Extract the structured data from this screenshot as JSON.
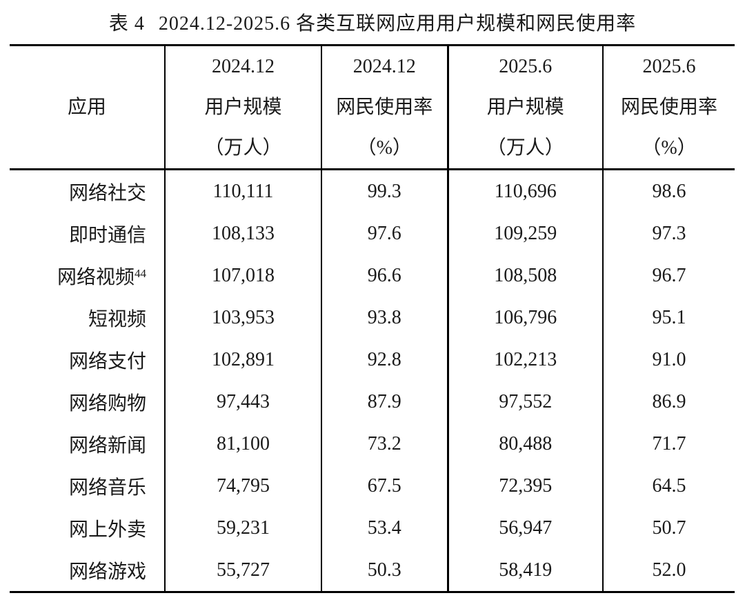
{
  "page": {
    "background": "#ffffff",
    "text_color": "#1a1a1a",
    "rule_color": "#000000"
  },
  "table": {
    "title": {
      "label": "表 4",
      "text": "2024.12-2025.6 各类互联网应用用户规模和网民使用率"
    },
    "header": {
      "app": "应用",
      "columns": [
        {
          "period": "2024.12",
          "metric": "用户规模",
          "unit": "（万人）"
        },
        {
          "period": "2024.12",
          "metric": "网民使用率",
          "unit": "（%）"
        },
        {
          "period": "2025.6",
          "metric": "用户规模",
          "unit": "（万人）"
        },
        {
          "period": "2025.6",
          "metric": "网民使用率",
          "unit": "（%）"
        }
      ]
    },
    "rows": [
      {
        "app": "网络社交",
        "note": "",
        "values": [
          "110,111",
          "99.3",
          "110,696",
          "98.6"
        ]
      },
      {
        "app": "即时通信",
        "note": "",
        "values": [
          "108,133",
          "97.6",
          "109,259",
          "97.3"
        ]
      },
      {
        "app": "网络视频",
        "note": "44",
        "values": [
          "107,018",
          "96.6",
          "108,508",
          "96.7"
        ]
      },
      {
        "app": "短视频",
        "note": "",
        "values": [
          "103,953",
          "93.8",
          "106,796",
          "95.1"
        ]
      },
      {
        "app": "网络支付",
        "note": "",
        "values": [
          "102,891",
          "92.8",
          "102,213",
          "91.0"
        ]
      },
      {
        "app": "网络购物",
        "note": "",
        "values": [
          "97,443",
          "87.9",
          "97,552",
          "86.9"
        ]
      },
      {
        "app": "网络新闻",
        "note": "",
        "values": [
          "81,100",
          "73.2",
          "80,488",
          "71.7"
        ]
      },
      {
        "app": "网络音乐",
        "note": "",
        "values": [
          "74,795",
          "67.5",
          "72,395",
          "64.5"
        ]
      },
      {
        "app": "网上外卖",
        "note": "",
        "values": [
          "59,231",
          "53.4",
          "56,947",
          "50.7"
        ]
      },
      {
        "app": "网络游戏",
        "note": "",
        "values": [
          "55,727",
          "50.3",
          "58,419",
          "52.0"
        ]
      }
    ]
  },
  "chart_data": {
    "type": "table",
    "title": "表 4 2024.12-2025.6 各类互联网应用用户规模和网民使用率",
    "categories": [
      "网络社交",
      "即时通信",
      "网络视频",
      "短视频",
      "网络支付",
      "网络购物",
      "网络新闻",
      "网络音乐",
      "网上外卖",
      "网络游戏"
    ],
    "series": [
      {
        "name": "2024.12 用户规模（万人）",
        "values": [
          110111,
          108133,
          107018,
          103953,
          102891,
          97443,
          81100,
          74795,
          59231,
          55727
        ]
      },
      {
        "name": "2024.12 网民使用率（%）",
        "values": [
          99.3,
          97.6,
          96.6,
          93.8,
          92.8,
          87.9,
          73.2,
          67.5,
          53.4,
          50.3
        ]
      },
      {
        "name": "2025.6 用户规模（万人）",
        "values": [
          110696,
          109259,
          108508,
          106796,
          102213,
          97552,
          80488,
          72395,
          56947,
          58419
        ]
      },
      {
        "name": "2025.6 网民使用率（%）",
        "values": [
          98.6,
          97.3,
          96.7,
          95.1,
          91.0,
          86.9,
          71.7,
          64.5,
          50.7,
          52.0
        ]
      }
    ],
    "footnote_marker": {
      "row": "网络视频",
      "marker": "44"
    }
  }
}
